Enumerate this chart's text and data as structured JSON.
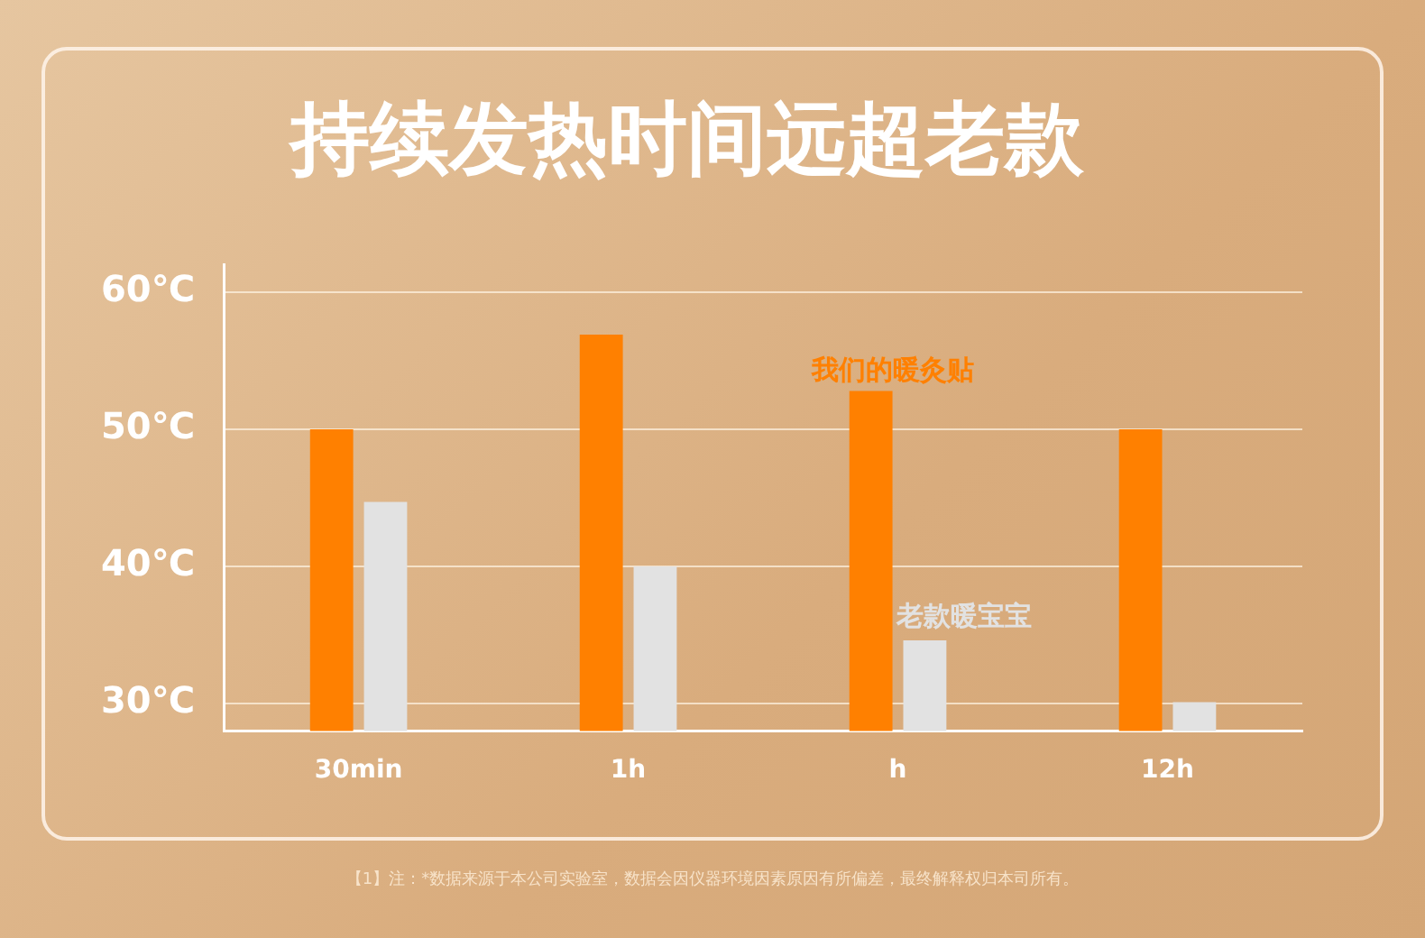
{
  "chart_data": {
    "type": "bar",
    "title": "持续发热时间远超老款",
    "categories": [
      "30min",
      "1h",
      "h",
      "12h"
    ],
    "series": [
      {
        "name": "我们的暖灸贴",
        "color": "#ff8000",
        "values": [
          50,
          56.9,
          52.8,
          50
        ]
      },
      {
        "name": "老款暖宝宝",
        "color": "#e2e2e2",
        "values": [
          44.7,
          40,
          34.6,
          30.1
        ]
      }
    ],
    "ylim": [
      28,
      62
    ],
    "yticks": [
      {
        "value": 30,
        "label": "30℃"
      },
      {
        "value": 40,
        "label": "40℃"
      },
      {
        "value": 50,
        "label": "50℃"
      },
      {
        "value": 60,
        "label": "60℃"
      }
    ],
    "grid": "y",
    "legend": false,
    "annotations": [
      "【1】注：*数据来源于本公司实验室，数据会因仪器环境因素原因有所偏差，最终解释权归本司所有。"
    ]
  }
}
